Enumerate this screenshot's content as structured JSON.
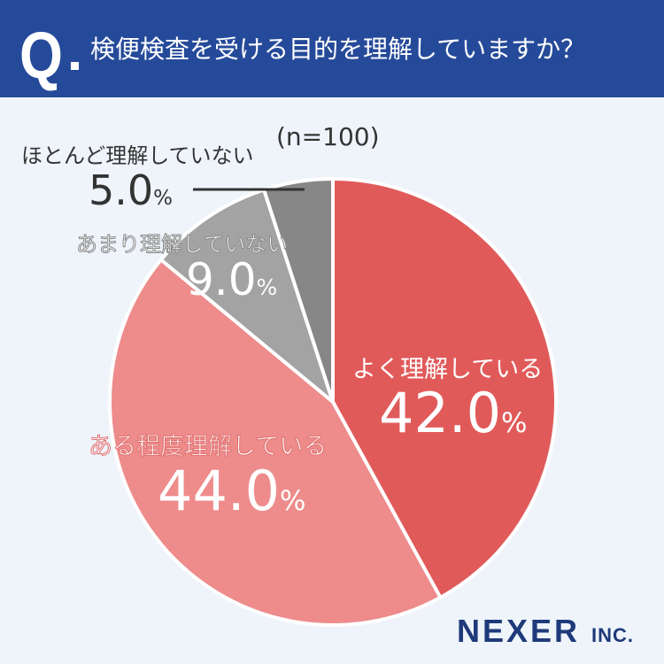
{
  "header": {
    "q": "Q",
    "title": "検便検査を受ける目的を理解していますか？"
  },
  "chart_data": {
    "type": "pie",
    "note": "(n=100)",
    "start": "top",
    "direction": "clockwise",
    "slices": [
      {
        "label": "よく理解している",
        "value": 42.0,
        "display": "42.0",
        "color": "#e15a5a"
      },
      {
        "label": "ある程度理解している",
        "value": 44.0,
        "display": "44.0",
        "color": "#ee8b8b"
      },
      {
        "label": "あまり理解していない",
        "value": 9.0,
        "display": "9.0",
        "color": "#a3a3a3"
      },
      {
        "label": "ほとんど理解していない",
        "value": 5.0,
        "display": "5.0",
        "color": "#878787"
      }
    ],
    "unit": "%"
  },
  "logo": {
    "main": "NEXER",
    "sub": "INC."
  }
}
